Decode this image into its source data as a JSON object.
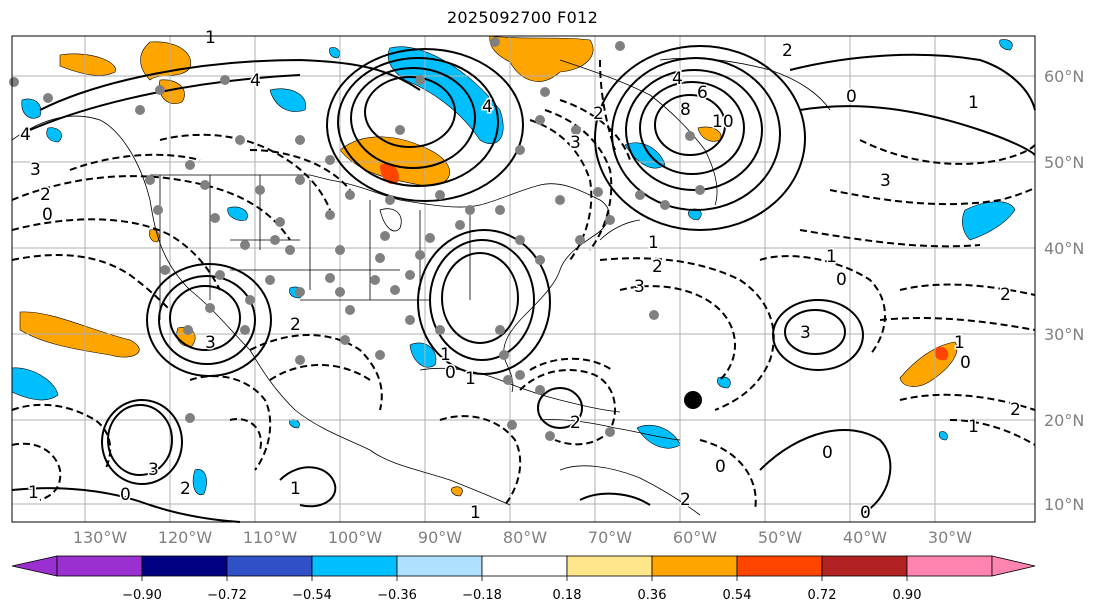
{
  "title": "2025092700 F012",
  "latitude_labels": [
    "60°N",
    "50°N",
    "40°N",
    "30°N",
    "20°N",
    "10°N"
  ],
  "longitude_labels": [
    "130°W",
    "120°W",
    "110°W",
    "100°W",
    "90°W",
    "80°W",
    "70°W",
    "60°W",
    "50°W",
    "40°W",
    "30°W"
  ],
  "colorbar": {
    "ticks": [
      "−0.90",
      "−0.72",
      "−0.54",
      "−0.36",
      "−0.18",
      "0.18",
      "0.36",
      "0.54",
      "0.72",
      "0.90"
    ],
    "colors": [
      "#9a30d0",
      "#000080",
      "#3050c8",
      "#00bfff",
      "#b0e0ff",
      "#ffffff",
      "#ffe68a",
      "#ffa500",
      "#ff4500",
      "#b22222",
      "#ff85b0"
    ]
  },
  "contour_labels": [
    "4",
    "4",
    "3",
    "2",
    "1",
    "0",
    "6",
    "8",
    "10",
    "4",
    "2",
    "1",
    "0",
    "3",
    "4",
    "3",
    "2",
    "1",
    "0",
    "3",
    "2",
    "1",
    "0",
    "1",
    "2",
    "3",
    "3",
    "2",
    "1",
    "0",
    "2",
    "1",
    "0",
    "1",
    "2",
    "0",
    "1",
    "0",
    "2",
    "3",
    "1",
    "0",
    "1",
    "2"
  ],
  "colors": {
    "positive_fill": "#ffa500",
    "negative_fill": "#00bfff",
    "dots": "#808080",
    "grid": "#b0b0b0"
  }
}
